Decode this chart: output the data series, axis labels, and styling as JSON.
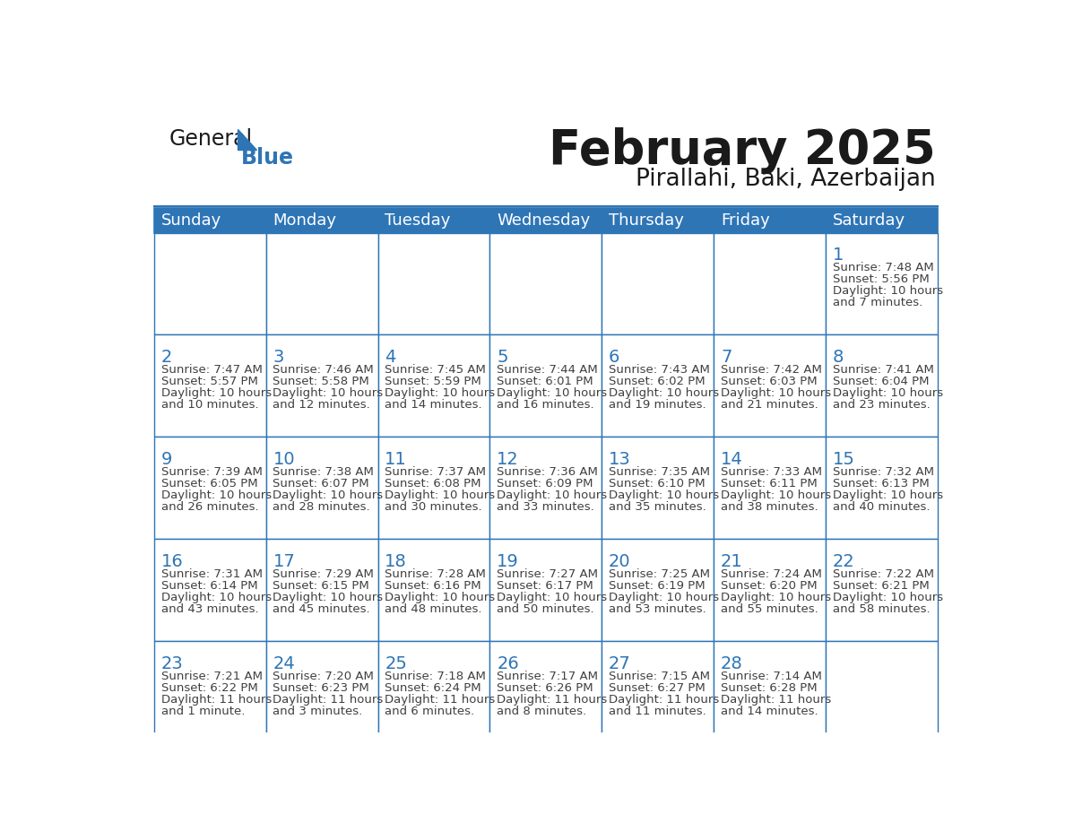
{
  "title": "February 2025",
  "subtitle": "Pirallahi, Baki, Azerbaijan",
  "days_of_week": [
    "Sunday",
    "Monday",
    "Tuesday",
    "Wednesday",
    "Thursday",
    "Friday",
    "Saturday"
  ],
  "header_bg_color": "#2E75B6",
  "header_text_color": "#FFFFFF",
  "cell_border_color": "#2E75B6",
  "cell_bg_color": "#FFFFFF",
  "day_number_color": "#2E75B6",
  "info_text_color": "#404040",
  "title_color": "#1a1a1a",
  "subtitle_color": "#1a1a1a",
  "blue_text_color": "#2E75B6",
  "logo_general_color": "#1a1a1a",
  "calendar_data": [
    [
      null,
      null,
      null,
      null,
      null,
      null,
      {
        "day": 1,
        "sunrise": "7:48 AM",
        "sunset": "5:56 PM",
        "daylight_line1": "Daylight: 10 hours",
        "daylight_line2": "and 7 minutes."
      }
    ],
    [
      {
        "day": 2,
        "sunrise": "7:47 AM",
        "sunset": "5:57 PM",
        "daylight_line1": "Daylight: 10 hours",
        "daylight_line2": "and 10 minutes."
      },
      {
        "day": 3,
        "sunrise": "7:46 AM",
        "sunset": "5:58 PM",
        "daylight_line1": "Daylight: 10 hours",
        "daylight_line2": "and 12 minutes."
      },
      {
        "day": 4,
        "sunrise": "7:45 AM",
        "sunset": "5:59 PM",
        "daylight_line1": "Daylight: 10 hours",
        "daylight_line2": "and 14 minutes."
      },
      {
        "day": 5,
        "sunrise": "7:44 AM",
        "sunset": "6:01 PM",
        "daylight_line1": "Daylight: 10 hours",
        "daylight_line2": "and 16 minutes."
      },
      {
        "day": 6,
        "sunrise": "7:43 AM",
        "sunset": "6:02 PM",
        "daylight_line1": "Daylight: 10 hours",
        "daylight_line2": "and 19 minutes."
      },
      {
        "day": 7,
        "sunrise": "7:42 AM",
        "sunset": "6:03 PM",
        "daylight_line1": "Daylight: 10 hours",
        "daylight_line2": "and 21 minutes."
      },
      {
        "day": 8,
        "sunrise": "7:41 AM",
        "sunset": "6:04 PM",
        "daylight_line1": "Daylight: 10 hours",
        "daylight_line2": "and 23 minutes."
      }
    ],
    [
      {
        "day": 9,
        "sunrise": "7:39 AM",
        "sunset": "6:05 PM",
        "daylight_line1": "Daylight: 10 hours",
        "daylight_line2": "and 26 minutes."
      },
      {
        "day": 10,
        "sunrise": "7:38 AM",
        "sunset": "6:07 PM",
        "daylight_line1": "Daylight: 10 hours",
        "daylight_line2": "and 28 minutes."
      },
      {
        "day": 11,
        "sunrise": "7:37 AM",
        "sunset": "6:08 PM",
        "daylight_line1": "Daylight: 10 hours",
        "daylight_line2": "and 30 minutes."
      },
      {
        "day": 12,
        "sunrise": "7:36 AM",
        "sunset": "6:09 PM",
        "daylight_line1": "Daylight: 10 hours",
        "daylight_line2": "and 33 minutes."
      },
      {
        "day": 13,
        "sunrise": "7:35 AM",
        "sunset": "6:10 PM",
        "daylight_line1": "Daylight: 10 hours",
        "daylight_line2": "and 35 minutes."
      },
      {
        "day": 14,
        "sunrise": "7:33 AM",
        "sunset": "6:11 PM",
        "daylight_line1": "Daylight: 10 hours",
        "daylight_line2": "and 38 minutes."
      },
      {
        "day": 15,
        "sunrise": "7:32 AM",
        "sunset": "6:13 PM",
        "daylight_line1": "Daylight: 10 hours",
        "daylight_line2": "and 40 minutes."
      }
    ],
    [
      {
        "day": 16,
        "sunrise": "7:31 AM",
        "sunset": "6:14 PM",
        "daylight_line1": "Daylight: 10 hours",
        "daylight_line2": "and 43 minutes."
      },
      {
        "day": 17,
        "sunrise": "7:29 AM",
        "sunset": "6:15 PM",
        "daylight_line1": "Daylight: 10 hours",
        "daylight_line2": "and 45 minutes."
      },
      {
        "day": 18,
        "sunrise": "7:28 AM",
        "sunset": "6:16 PM",
        "daylight_line1": "Daylight: 10 hours",
        "daylight_line2": "and 48 minutes."
      },
      {
        "day": 19,
        "sunrise": "7:27 AM",
        "sunset": "6:17 PM",
        "daylight_line1": "Daylight: 10 hours",
        "daylight_line2": "and 50 minutes."
      },
      {
        "day": 20,
        "sunrise": "7:25 AM",
        "sunset": "6:19 PM",
        "daylight_line1": "Daylight: 10 hours",
        "daylight_line2": "and 53 minutes."
      },
      {
        "day": 21,
        "sunrise": "7:24 AM",
        "sunset": "6:20 PM",
        "daylight_line1": "Daylight: 10 hours",
        "daylight_line2": "and 55 minutes."
      },
      {
        "day": 22,
        "sunrise": "7:22 AM",
        "sunset": "6:21 PM",
        "daylight_line1": "Daylight: 10 hours",
        "daylight_line2": "and 58 minutes."
      }
    ],
    [
      {
        "day": 23,
        "sunrise": "7:21 AM",
        "sunset": "6:22 PM",
        "daylight_line1": "Daylight: 11 hours",
        "daylight_line2": "and 1 minute."
      },
      {
        "day": 24,
        "sunrise": "7:20 AM",
        "sunset": "6:23 PM",
        "daylight_line1": "Daylight: 11 hours",
        "daylight_line2": "and 3 minutes."
      },
      {
        "day": 25,
        "sunrise": "7:18 AM",
        "sunset": "6:24 PM",
        "daylight_line1": "Daylight: 11 hours",
        "daylight_line2": "and 6 minutes."
      },
      {
        "day": 26,
        "sunrise": "7:17 AM",
        "sunset": "6:26 PM",
        "daylight_line1": "Daylight: 11 hours",
        "daylight_line2": "and 8 minutes."
      },
      {
        "day": 27,
        "sunrise": "7:15 AM",
        "sunset": "6:27 PM",
        "daylight_line1": "Daylight: 11 hours",
        "daylight_line2": "and 11 minutes."
      },
      {
        "day": 28,
        "sunrise": "7:14 AM",
        "sunset": "6:28 PM",
        "daylight_line1": "Daylight: 11 hours",
        "daylight_line2": "and 14 minutes."
      },
      null
    ]
  ]
}
